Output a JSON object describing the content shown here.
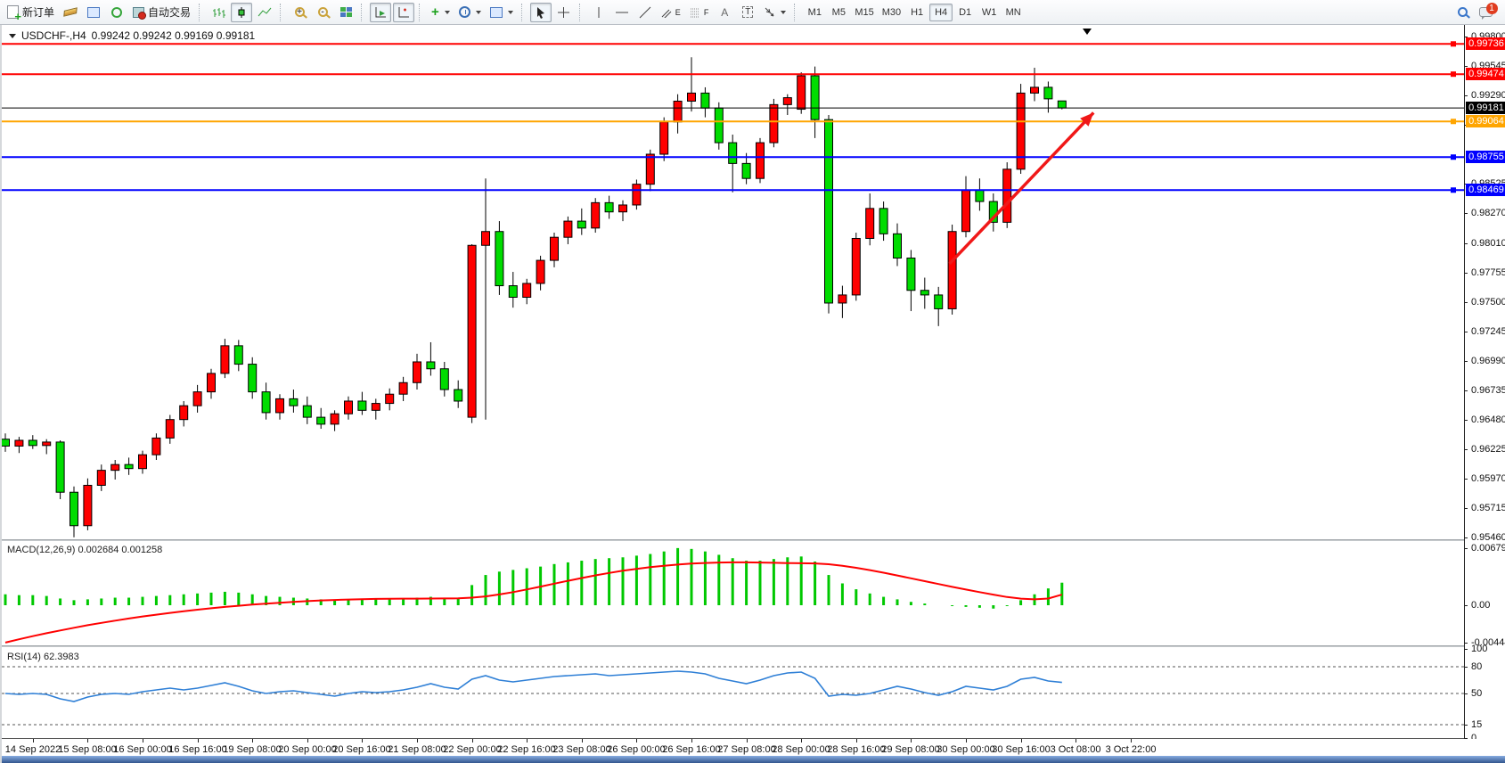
{
  "toolbar": {
    "new_order_label": "新订单",
    "autotrading_label": "自动交易",
    "text_tool_label": "A",
    "label_tool_label": "T",
    "channel_tool_suffix": "E",
    "fibo_tool_suffix": "F",
    "zoom_in_glyph": "+",
    "zoom_out_glyph": "-",
    "indicators_glyph": "+",
    "timeframes": [
      "M1",
      "M5",
      "M15",
      "M30",
      "H1",
      "H4",
      "D1",
      "W1",
      "MN"
    ],
    "active_timeframe": "H4",
    "notification_count": "1"
  },
  "chart": {
    "title_symbol": "USDCHF-,H4",
    "title_ohlc": "0.99242 0.99242 0.99169 0.99181",
    "macd_label": "MACD(12,26,9) 0.002684 0.001258",
    "rsi_label": "RSI(14) 62.3983"
  },
  "chart_data": {
    "type": "candlestick",
    "title": "USDCHF-,H4",
    "current_ohlc": {
      "open": 0.99242,
      "high": 0.99242,
      "low": 0.99169,
      "close": 0.99181
    },
    "colors": {
      "candle_up": "#FF0000",
      "candle_down": "#00DC00",
      "candle_outline": "#000000",
      "macd_histogram": "#00C800",
      "macd_signal": "#FF0000",
      "rsi_line": "#2E7FD6",
      "arrow": "#F01818"
    },
    "price_axis": {
      "visible_top": 0.99885,
      "visible_bottom": 0.9545,
      "ticks": [
        "0.99800",
        "0.99545",
        "0.99290",
        "0.99035",
        "0.98525",
        "0.98270",
        "0.98010",
        "0.97755",
        "0.97500",
        "0.97245",
        "0.96990",
        "0.96735",
        "0.96480",
        "0.96225",
        "0.95970",
        "0.95715",
        "0.95460"
      ]
    },
    "hlines": [
      {
        "price": 0.99736,
        "label": "0.99736",
        "color": "#FF0000",
        "width": 2,
        "current": false
      },
      {
        "price": 0.99474,
        "label": "0.99474",
        "color": "#FF0000",
        "width": 2,
        "current": false
      },
      {
        "price": 0.99181,
        "label": "0.99181",
        "color": "#000000",
        "width": 1,
        "current": true
      },
      {
        "price": 0.99064,
        "label": "0.99064",
        "color": "#FFA500",
        "width": 2,
        "current": false
      },
      {
        "price": 0.98755,
        "label": "0.98755",
        "color": "#0000FF",
        "width": 2,
        "current": false
      },
      {
        "price": 0.98469,
        "label": "0.98469",
        "color": "#0000FF",
        "width": 2,
        "current": false
      }
    ],
    "time_labels": [
      "14 Sep 2022",
      "15 Sep 08:00",
      "16 Sep 00:00",
      "16 Sep 16:00",
      "19 Sep 08:00",
      "20 Sep 00:00",
      "20 Sep 16:00",
      "21 Sep 08:00",
      "22 Sep 00:00",
      "22 Sep 16:00",
      "23 Sep 08:00",
      "26 Sep 00:00",
      "26 Sep 16:00",
      "27 Sep 08:00",
      "28 Sep 00:00",
      "28 Sep 16:00",
      "29 Sep 08:00",
      "30 Sep 00:00",
      "30 Sep 16:00",
      "3 Oct 08:00",
      "3 Oct 22:00"
    ],
    "candles": [
      [
        0.9631,
        0.9636,
        0.962,
        0.9625
      ],
      [
        0.9625,
        0.9633,
        0.9619,
        0.963
      ],
      [
        0.963,
        0.96345,
        0.96225,
        0.96255
      ],
      [
        0.96255,
        0.9631,
        0.9618,
        0.96285
      ],
      [
        0.96285,
        0.963,
        0.9579,
        0.9585
      ],
      [
        0.9585,
        0.959,
        0.9546,
        0.9556
      ],
      [
        0.9556,
        0.9597,
        0.9552,
        0.9591
      ],
      [
        0.9591,
        0.9609,
        0.9586,
        0.9604
      ],
      [
        0.9604,
        0.9613,
        0.9596,
        0.9609
      ],
      [
        0.9609,
        0.9615,
        0.96,
        0.96055
      ],
      [
        0.96055,
        0.9621,
        0.9601,
        0.96175
      ],
      [
        0.96175,
        0.9636,
        0.9613,
        0.9632
      ],
      [
        0.9632,
        0.9652,
        0.9627,
        0.9648
      ],
      [
        0.9648,
        0.9664,
        0.9642,
        0.966
      ],
      [
        0.966,
        0.9678,
        0.9654,
        0.9672
      ],
      [
        0.9672,
        0.9692,
        0.9666,
        0.9688
      ],
      [
        0.9688,
        0.9718,
        0.9684,
        0.9712
      ],
      [
        0.9712,
        0.9717,
        0.969,
        0.9696
      ],
      [
        0.9696,
        0.9702,
        0.9666,
        0.9672
      ],
      [
        0.9672,
        0.968,
        0.9648,
        0.9654
      ],
      [
        0.9654,
        0.967,
        0.9648,
        0.9666
      ],
      [
        0.9666,
        0.9674,
        0.9654,
        0.966
      ],
      [
        0.966,
        0.9668,
        0.9644,
        0.965
      ],
      [
        0.965,
        0.9658,
        0.964,
        0.9644
      ],
      [
        0.9644,
        0.9656,
        0.9638,
        0.9653
      ],
      [
        0.9653,
        0.9668,
        0.9648,
        0.9664
      ],
      [
        0.9664,
        0.9672,
        0.9652,
        0.9656
      ],
      [
        0.9656,
        0.9666,
        0.9648,
        0.9662
      ],
      [
        0.9662,
        0.9675,
        0.9656,
        0.967
      ],
      [
        0.967,
        0.9685,
        0.9664,
        0.968
      ],
      [
        0.968,
        0.9705,
        0.9674,
        0.9698
      ],
      [
        0.9698,
        0.9715,
        0.9686,
        0.9692
      ],
      [
        0.9692,
        0.9698,
        0.9668,
        0.9674
      ],
      [
        0.9674,
        0.9682,
        0.9658,
        0.9664
      ],
      [
        0.965,
        0.98,
        0.9645,
        0.9799
      ],
      [
        0.9799,
        0.9857,
        0.9648,
        0.9811
      ],
      [
        0.9811,
        0.982,
        0.9756,
        0.9764
      ],
      [
        0.9764,
        0.9776,
        0.9745,
        0.9754
      ],
      [
        0.9754,
        0.977,
        0.9748,
        0.9766
      ],
      [
        0.9766,
        0.979,
        0.976,
        0.9786
      ],
      [
        0.9786,
        0.981,
        0.978,
        0.9806
      ],
      [
        0.9806,
        0.9824,
        0.98,
        0.982
      ],
      [
        0.982,
        0.9831,
        0.9808,
        0.9814
      ],
      [
        0.9814,
        0.984,
        0.981,
        0.9836
      ],
      [
        0.9836,
        0.9842,
        0.9822,
        0.9828
      ],
      [
        0.9828,
        0.9838,
        0.982,
        0.9834
      ],
      [
        0.9834,
        0.9856,
        0.983,
        0.9852
      ],
      [
        0.9852,
        0.9882,
        0.9846,
        0.9878
      ],
      [
        0.9878,
        0.991,
        0.9872,
        0.9906
      ],
      [
        0.9906,
        0.993,
        0.9896,
        0.9924
      ],
      [
        0.9924,
        0.9962,
        0.9915,
        0.9931
      ],
      [
        0.9931,
        0.9936,
        0.991,
        0.9918
      ],
      [
        0.9918,
        0.9923,
        0.9882,
        0.9888
      ],
      [
        0.9888,
        0.9895,
        0.9845,
        0.987
      ],
      [
        0.987,
        0.9879,
        0.9852,
        0.9857
      ],
      [
        0.9857,
        0.9892,
        0.9853,
        0.9888
      ],
      [
        0.9888,
        0.9926,
        0.9884,
        0.9921
      ],
      [
        0.9921,
        0.993,
        0.9912,
        0.9927
      ],
      [
        0.9917,
        0.9949,
        0.9913,
        0.9946
      ],
      [
        0.9946,
        0.9954,
        0.9892,
        0.9908
      ],
      [
        0.9908,
        0.9912,
        0.974,
        0.9749
      ],
      [
        0.9749,
        0.9764,
        0.9736,
        0.9756
      ],
      [
        0.9756,
        0.981,
        0.9751,
        0.9805
      ],
      [
        0.9805,
        0.9844,
        0.9799,
        0.9831
      ],
      [
        0.9831,
        0.9837,
        0.9803,
        0.9809
      ],
      [
        0.9809,
        0.9818,
        0.9781,
        0.9788
      ],
      [
        0.9788,
        0.9795,
        0.9742,
        0.976
      ],
      [
        0.976,
        0.9771,
        0.9744,
        0.9756
      ],
      [
        0.9756,
        0.9763,
        0.9729,
        0.9744
      ],
      [
        0.9744,
        0.9817,
        0.9739,
        0.9811
      ],
      [
        0.9811,
        0.9859,
        0.9806,
        0.9847
      ],
      [
        0.9847,
        0.9857,
        0.9829,
        0.9837
      ],
      [
        0.9837,
        0.9844,
        0.9811,
        0.9819
      ],
      [
        0.9819,
        0.9871,
        0.9814,
        0.9865
      ],
      [
        0.9865,
        0.9939,
        0.9861,
        0.9931
      ],
      [
        0.9931,
        0.9953,
        0.9924,
        0.9936
      ],
      [
        0.9936,
        0.9941,
        0.9914,
        0.9926
      ],
      [
        0.99242,
        0.99242,
        0.99169,
        0.99181
      ]
    ],
    "macd": {
      "label": "MACD(12,26,9)",
      "current_macd": 0.002684,
      "current_signal": 0.001258,
      "axis_ticks": [
        {
          "label": "0.00679",
          "value": 0.00679
        },
        {
          "label": "0.00",
          "value": 0
        },
        {
          "label": "-0.004442",
          "value": -0.004442
        }
      ],
      "visible_top": 0.00753,
      "visible_bottom": -0.00456,
      "histogram": [
        0.0013,
        0.0012,
        0.0012,
        0.0011,
        0.0008,
        0.0006,
        0.0007,
        0.0008,
        0.0009,
        0.0009,
        0.001,
        0.0011,
        0.0012,
        0.0013,
        0.0014,
        0.0015,
        0.0016,
        0.0015,
        0.0013,
        0.0011,
        0.001,
        0.0009,
        0.0008,
        0.0007,
        0.0006,
        0.0006,
        0.0007,
        0.0007,
        0.0007,
        0.0008,
        0.0009,
        0.001,
        0.0009,
        0.0009,
        0.0024,
        0.0036,
        0.004,
        0.0042,
        0.0044,
        0.0046,
        0.0049,
        0.0051,
        0.0053,
        0.0055,
        0.0056,
        0.0057,
        0.0059,
        0.0061,
        0.0064,
        0.0068,
        0.0067,
        0.0064,
        0.006,
        0.0056,
        0.0053,
        0.0053,
        0.0055,
        0.0057,
        0.0058,
        0.0052,
        0.0036,
        0.0026,
        0.0019,
        0.0014,
        0.001,
        0.0007,
        0.0004,
        0.0002,
        0.0,
        -0.0001,
        -0.0002,
        -0.0003,
        -0.0004,
        -0.0001,
        0.0006,
        0.0013,
        0.002,
        0.002684
      ],
      "signal": [
        -0.00444,
        -0.00405,
        -0.00368,
        -0.00333,
        -0.003,
        -0.00268,
        -0.00238,
        -0.0021,
        -0.00183,
        -0.00158,
        -0.00134,
        -0.00112,
        -0.00091,
        -0.00071,
        -0.00053,
        -0.00036,
        -0.0002,
        -6e-05,
        7e-05,
        0.00019,
        0.0003,
        0.0004,
        0.00049,
        0.00057,
        0.00063,
        0.00068,
        0.00072,
        0.00075,
        0.00077,
        0.00078,
        0.00079,
        0.0008,
        0.00081,
        0.00082,
        0.0009,
        0.00105,
        0.00128,
        0.00156,
        0.00188,
        0.00222,
        0.00257,
        0.00291,
        0.00324,
        0.00355,
        0.00384,
        0.0041,
        0.00433,
        0.00453,
        0.0047,
        0.00484,
        0.00495,
        0.00503,
        0.00508,
        0.0051,
        0.0051,
        0.00508,
        0.00505,
        0.00502,
        0.005,
        0.00497,
        0.00488,
        0.0047,
        0.00446,
        0.00418,
        0.00387,
        0.00354,
        0.0032,
        0.00286,
        0.00252,
        0.00219,
        0.00187,
        0.00156,
        0.00126,
        0.00098,
        0.00078,
        0.0007,
        0.0008,
        0.001258
      ]
    },
    "rsi": {
      "label": "RSI(14)",
      "current": 62.3983,
      "axis_ticks": [
        {
          "label": "100",
          "value": 100
        },
        {
          "label": "80",
          "value": 80
        },
        {
          "label": "50",
          "value": 50
        },
        {
          "label": "15",
          "value": 15
        },
        {
          "label": "0",
          "value": 0
        }
      ],
      "levels": [
        80,
        50,
        15
      ],
      "values": [
        50,
        49,
        50,
        49,
        44,
        41,
        46,
        49,
        50,
        49,
        52,
        54,
        56,
        54,
        56,
        59,
        62,
        58,
        53,
        50,
        52,
        53,
        51,
        49,
        47,
        50,
        52,
        51,
        52,
        54,
        57,
        61,
        57,
        55,
        66,
        70,
        65,
        63,
        65,
        67,
        69,
        70,
        71,
        72,
        70,
        71,
        72,
        73,
        74,
        75,
        74,
        72,
        67,
        64,
        61,
        65,
        70,
        73,
        74,
        67,
        47,
        49,
        48,
        50,
        54,
        58,
        55,
        51,
        48,
        52,
        58,
        56,
        54,
        58,
        66,
        68,
        64,
        62.4
      ]
    },
    "annotations": [
      {
        "type": "arrow",
        "from_bar": 68.8,
        "from_price": 0.9783,
        "to_bar": 79.3,
        "to_price": 0.9914,
        "color": "#F01818"
      }
    ]
  }
}
